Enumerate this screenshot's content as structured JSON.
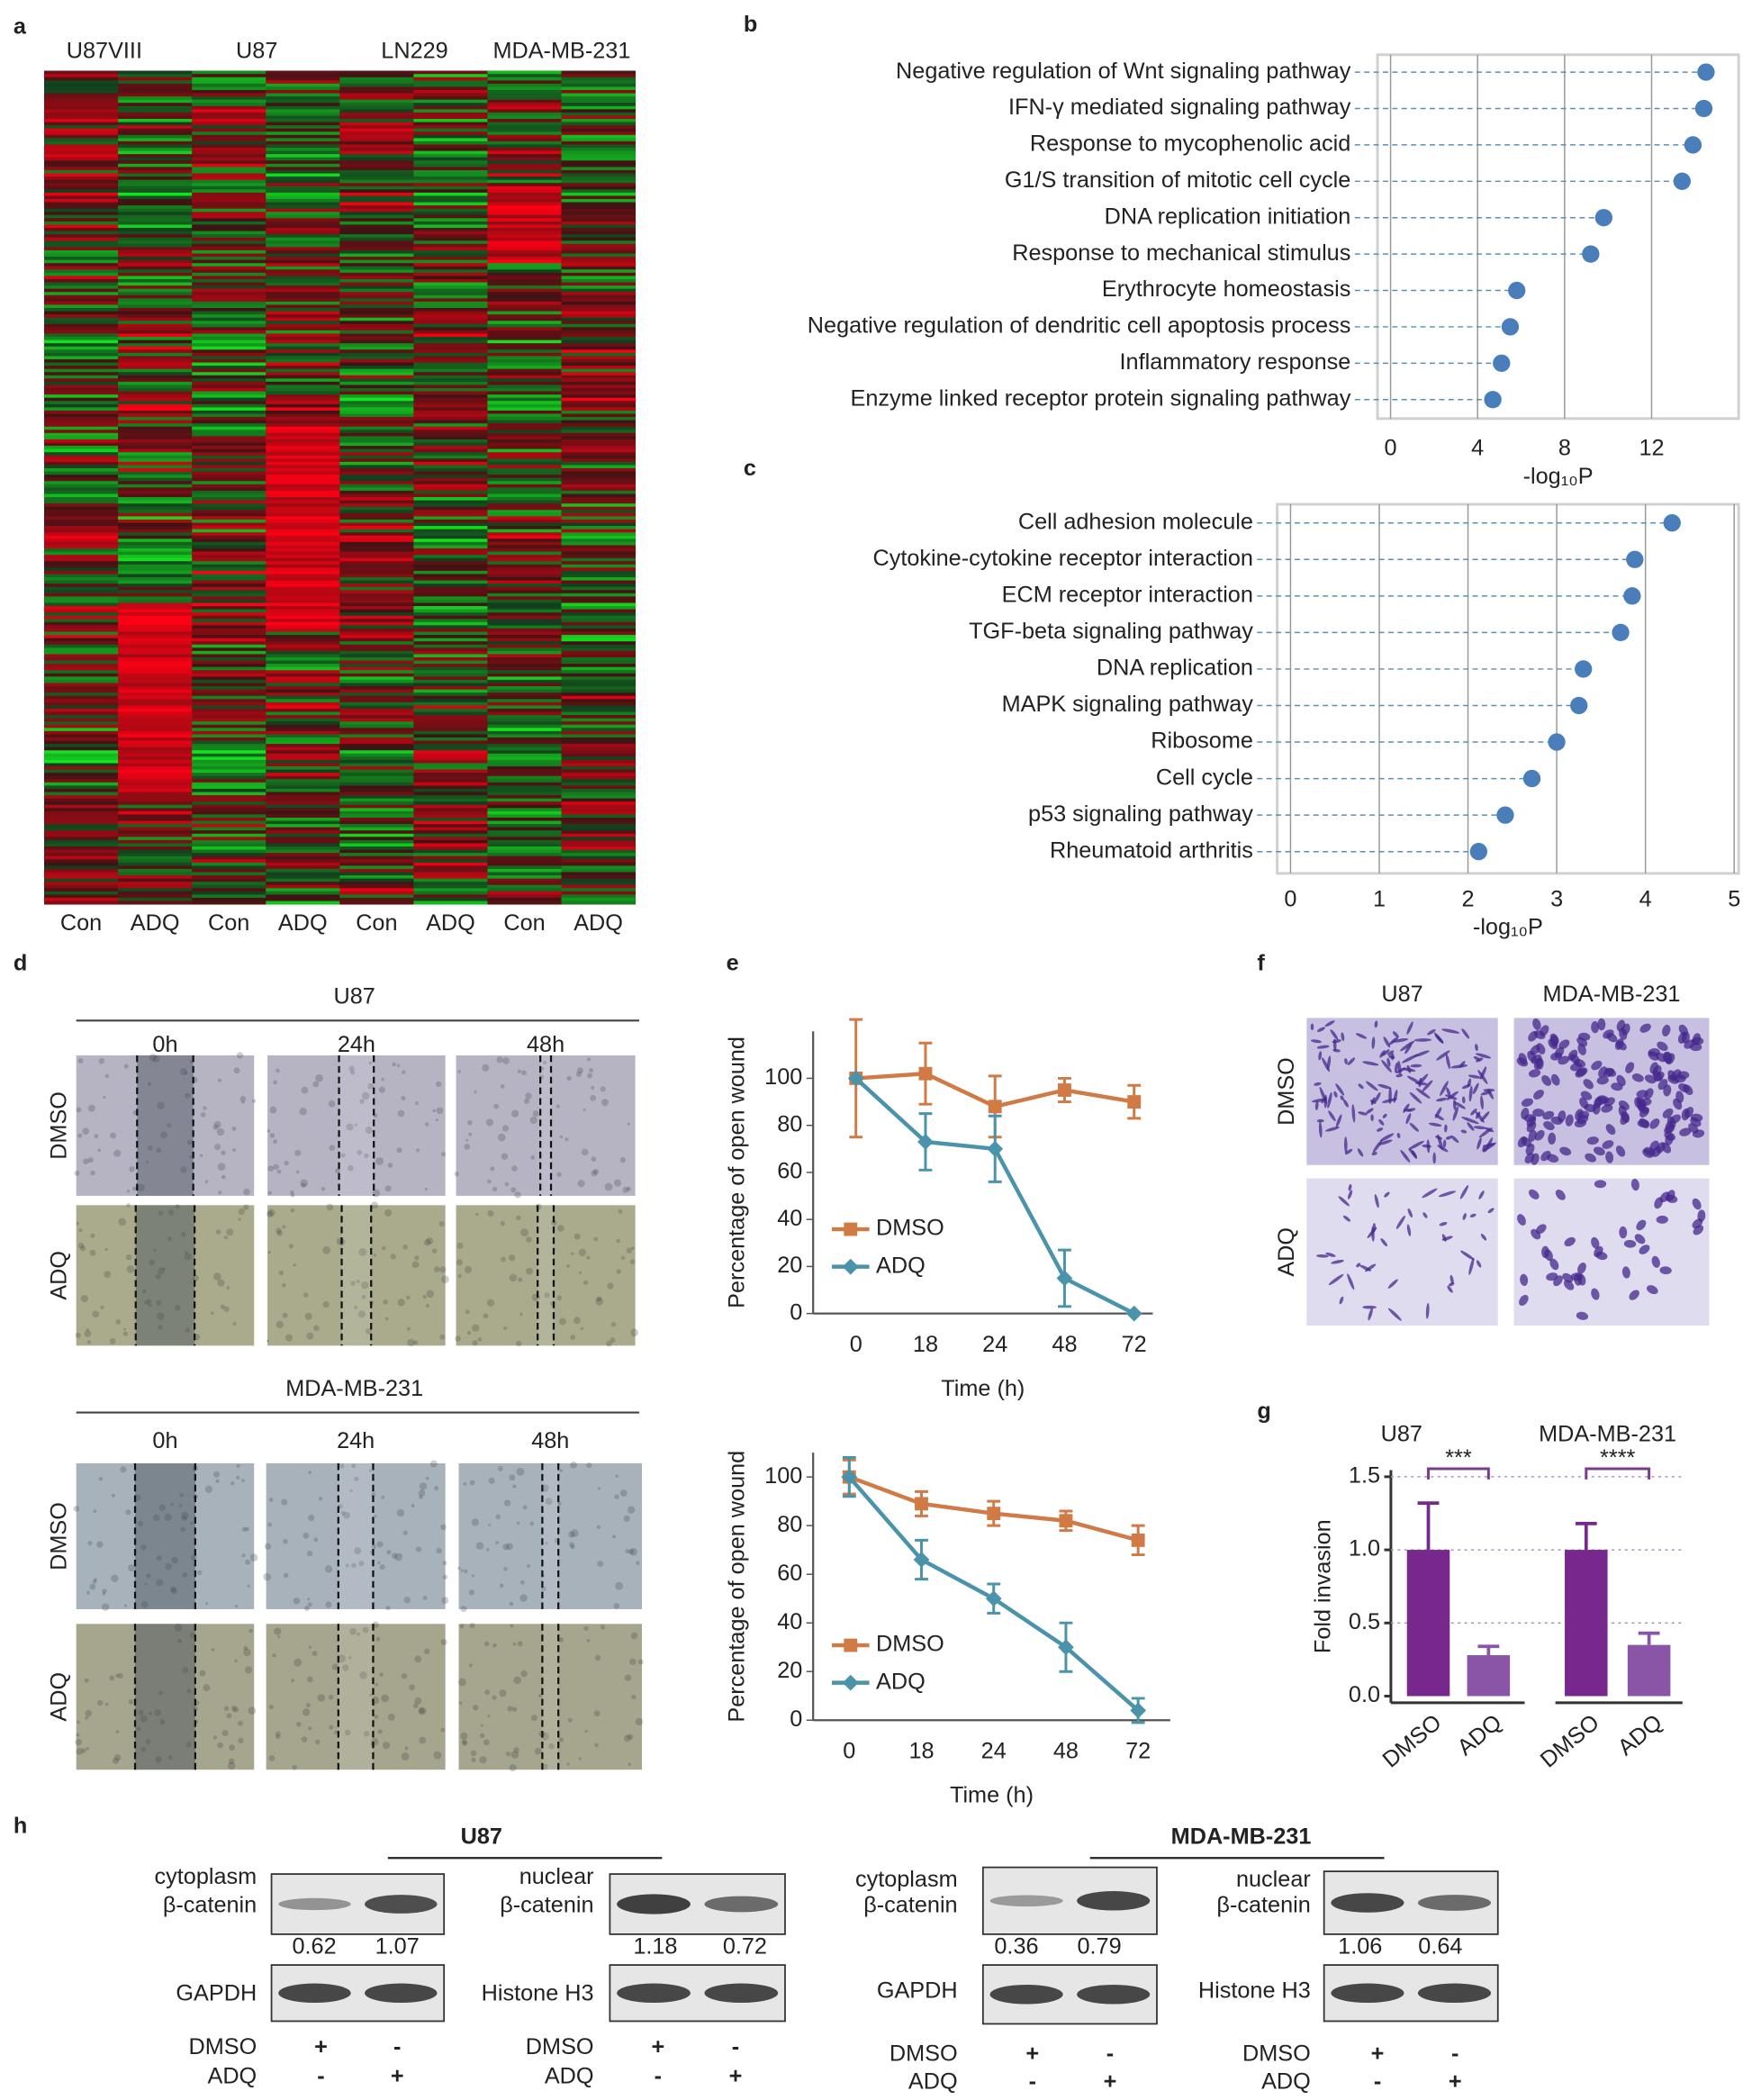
{
  "panel_labels": [
    "a",
    "b",
    "c",
    "d",
    "e",
    "f",
    "g",
    "h"
  ],
  "heatmap": {
    "column_groups": [
      "U87VIII",
      "U87",
      "LN229",
      "MDA-MB-231"
    ],
    "column_labels": [
      "Con",
      "ADQ",
      "Con",
      "ADQ",
      "Con",
      "ADQ",
      "Con",
      "ADQ"
    ]
  },
  "chart_data": [
    {
      "type": "lollipop",
      "categories": [
        "Negative regulation of Wnt signaling pathway",
        "IFN-γ mediated signaling pathway",
        "Response to mycophenolic acid",
        "G1/S transition of mitotic cell cycle",
        "DNA replication initiation",
        "Response to mechanical stimulus",
        "Erythrocyte homeostasis",
        "Negative regulation of dendritic cell apoptosis process",
        "Inflammatory response",
        "Enzyme linked receptor protein signaling pathway"
      ],
      "values": [
        14.5,
        14.4,
        13.9,
        13.4,
        9.8,
        9.2,
        5.8,
        5.5,
        5.1,
        4.7
      ],
      "color": "#4a7ebb",
      "xlim": [
        -0.6,
        16
      ],
      "xticks": [
        0,
        4,
        8,
        12
      ],
      "xlabel": "-log₁₀P",
      "grid": true
    },
    {
      "type": "lollipop",
      "categories": [
        "Cell adhesion molecule",
        "Cytokine-cytokine receptor interaction",
        "ECM receptor interaction",
        "TGF-beta signaling pathway",
        "DNA replication",
        "MAPK signaling pathway",
        "Ribosome",
        "Cell cycle",
        "p53 signaling pathway",
        "Rheumatoid arthritis"
      ],
      "values": [
        4.3,
        3.88,
        3.85,
        3.72,
        3.3,
        3.25,
        3.0,
        2.72,
        2.42,
        2.12
      ],
      "color": "#4a7ebb",
      "xlim": [
        -0.15,
        5.05
      ],
      "xticks": [
        0,
        1,
        2,
        3,
        4,
        5
      ],
      "xlabel": "-log₁₀P",
      "grid": true
    },
    {
      "type": "line",
      "categories": [
        "0",
        "18",
        "24",
        "48",
        "72"
      ],
      "ylabel": "Percentage of open wound",
      "xlabel": "Time (h)",
      "ylim": [
        0,
        120
      ],
      "yticks": [
        0,
        20,
        40,
        60,
        80,
        100
      ],
      "series": [
        {
          "name": "DMSO",
          "color": "#d07a45",
          "values": [
            100,
            102,
            88,
            95,
            90
          ],
          "errors": [
            25,
            13,
            13,
            5,
            7
          ]
        },
        {
          "name": "ADQ",
          "color": "#4a93aa",
          "values": [
            100,
            73,
            70,
            15,
            0
          ],
          "errors": [
            0,
            12,
            14,
            12,
            0
          ]
        }
      ]
    },
    {
      "type": "line",
      "categories": [
        "0",
        "18",
        "24",
        "48",
        "72"
      ],
      "ylabel": "Percentage of open wound",
      "xlabel": "Time (h)",
      "ylim": [
        0,
        110
      ],
      "yticks": [
        0,
        20,
        40,
        60,
        80,
        100
      ],
      "series": [
        {
          "name": "DMSO",
          "color": "#d07a45",
          "values": [
            100,
            89,
            85,
            82,
            74
          ],
          "errors": [
            7,
            5,
            5,
            4,
            6
          ]
        },
        {
          "name": "ADQ",
          "color": "#4a93aa",
          "values": [
            100,
            66,
            50,
            30,
            4
          ],
          "errors": [
            8,
            8,
            6,
            10,
            5
          ]
        }
      ]
    },
    {
      "type": "bar",
      "groups": [
        "U87",
        "MDA-MB-231"
      ],
      "categories": [
        "DMSO",
        "ADQ",
        "DMSO",
        "ADQ"
      ],
      "values": [
        1.0,
        0.28,
        1.0,
        0.35
      ],
      "errors": [
        0.32,
        0.06,
        0.18,
        0.08
      ],
      "colors": [
        "#76288c",
        "#8a55a6",
        "#76288c",
        "#8a55a6"
      ],
      "significance": [
        "***",
        "****"
      ],
      "ylabel": "Fold invasion",
      "ylim": [
        0,
        1.5
      ],
      "yticks": [
        {
          "value": 0,
          "label": "0.0"
        },
        0.5,
        {
          "value": 1,
          "label": "1.0"
        },
        1.5
      ],
      "grid": true
    }
  ],
  "wound_healing": {
    "groups": [
      {
        "title": "U87",
        "times": [
          "0h",
          "24h",
          "48h"
        ],
        "rows": [
          "DMSO",
          "ADQ"
        ]
      },
      {
        "title": "MDA-MB-231",
        "times": [
          "0h",
          "24h",
          "48h"
        ],
        "rows": [
          "DMSO",
          "ADQ"
        ]
      }
    ]
  },
  "transwell": {
    "columns": [
      "U87",
      "MDA-MB-231"
    ],
    "rows": [
      "DMSO",
      "ADQ"
    ]
  },
  "western": {
    "groups": [
      {
        "title": "U87",
        "blots": [
          {
            "label": [
              "cytoplasm",
              "β-catenin"
            ],
            "values": [
              0.62,
              1.07
            ],
            "control": "GAPDH"
          },
          {
            "label": [
              "nuclear",
              "β-catenin"
            ],
            "values": [
              1.18,
              0.72
            ],
            "control": "Histone H3"
          }
        ]
      },
      {
        "title": "MDA-MB-231",
        "blots": [
          {
            "label": [
              "cytoplasm",
              "β-catenin"
            ],
            "values": [
              0.36,
              0.79
            ],
            "control": "GAPDH"
          },
          {
            "label": [
              "nuclear",
              "β-catenin"
            ],
            "values": [
              1.06,
              0.64
            ],
            "control": "Histone H3"
          }
        ]
      }
    ],
    "treatments": [
      "DMSO",
      "ADQ"
    ],
    "signs": [
      [
        "+",
        "-"
      ],
      [
        "-",
        "+"
      ]
    ]
  }
}
